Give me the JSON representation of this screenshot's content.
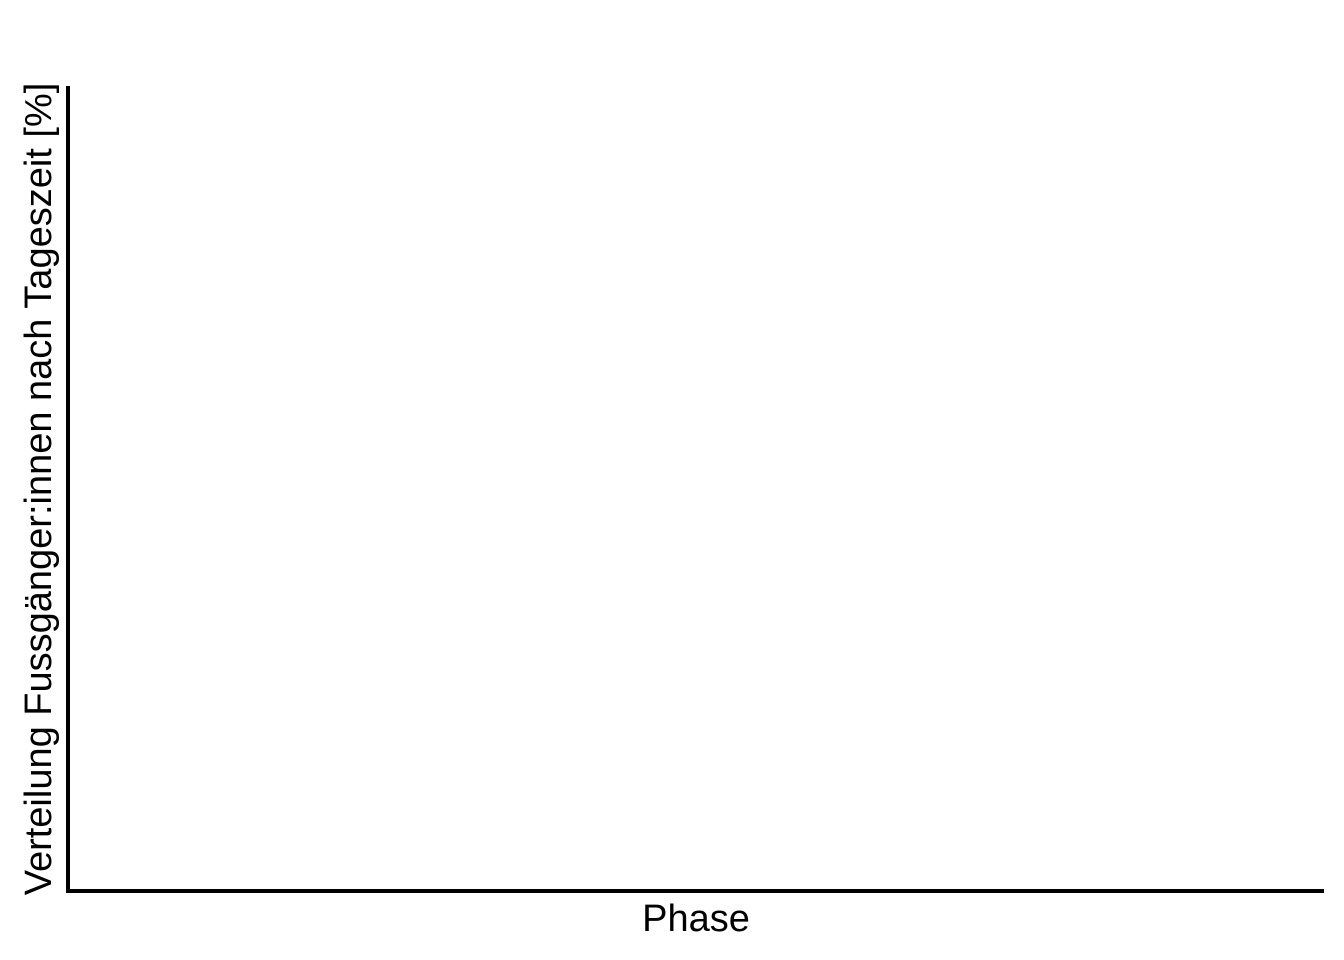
{
  "chart_data": {
    "type": "bar",
    "title": "",
    "xlabel": "Phase",
    "ylabel": "Verteilung Fussgänger:innen nach Tageszeit [%]",
    "categories": [],
    "series": [],
    "grid": false,
    "legend": "none"
  }
}
